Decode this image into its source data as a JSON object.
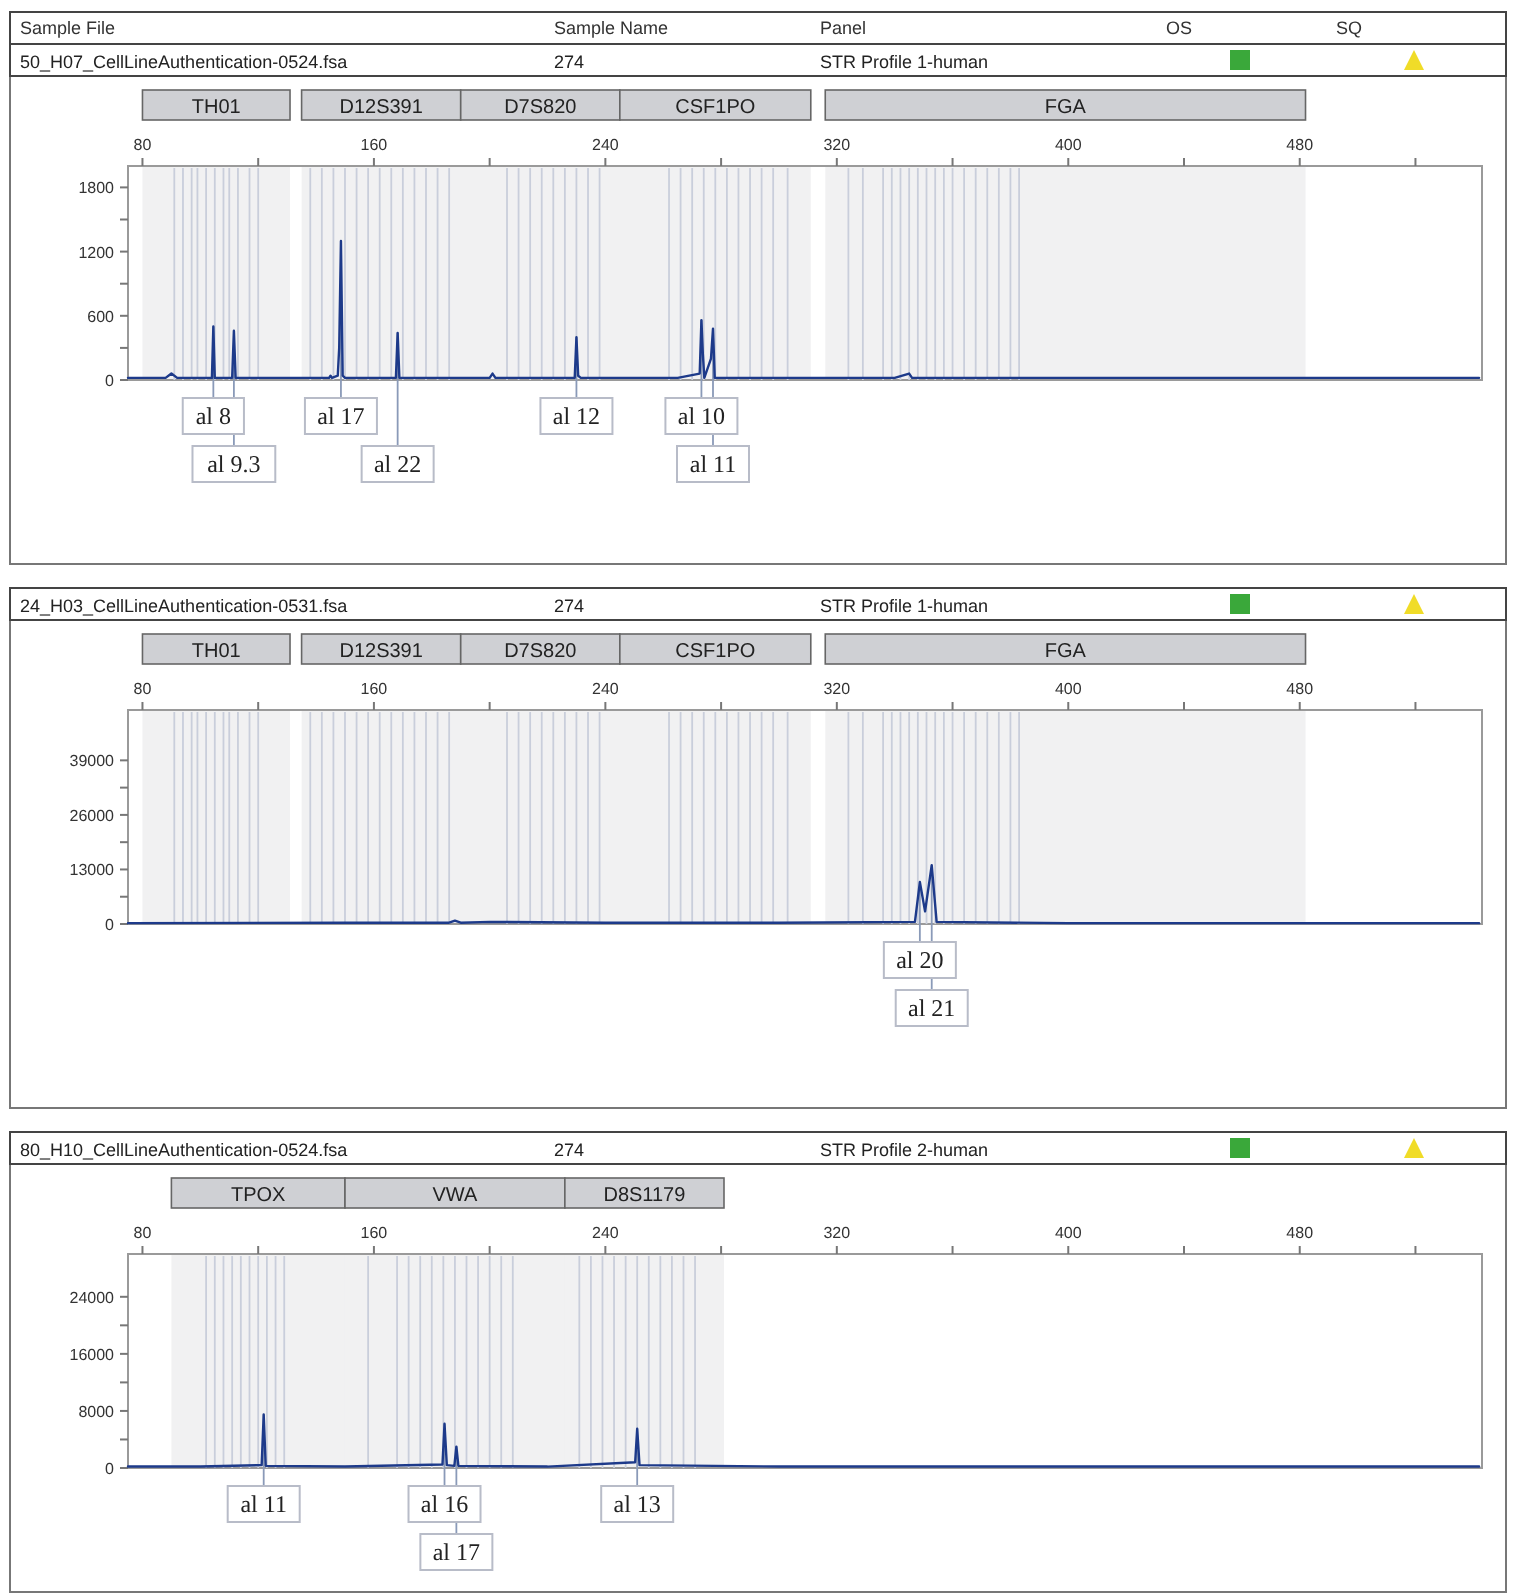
{
  "chart_data": [
    {
      "type": "other",
      "annotations": [
        "Sample File",
        "Sample Name",
        "Panel",
        "OS",
        "SQ"
      ]
    },
    {
      "type": "line",
      "title": "50_H07_CellLineAuthentication-0524.fsa",
      "annotations": [
        "274",
        "STR Profile 1-human",
        {
          "text": "al 8",
          "x": 104.5,
          "y": 500
        },
        {
          "text": "al 9.3",
          "x": 111.6,
          "y": 460
        },
        {
          "text": "al 17",
          "x": 148.6,
          "y": 1300
        },
        {
          "text": "al 22",
          "x": 168.2,
          "y": 440
        },
        {
          "text": "al 12",
          "x": 230,
          "y": 400
        },
        {
          "text": "al 10",
          "x": 273.2,
          "y": 560
        },
        {
          "text": "al 11",
          "x": 277.2,
          "y": 480
        }
      ],
      "x": [
        75,
        88,
        90,
        92,
        104,
        104.5,
        105,
        111,
        111.6,
        112.2,
        120,
        140,
        144.5,
        145,
        145.5,
        147.5,
        148,
        148.6,
        149.2,
        150,
        160,
        167.6,
        168.2,
        168.8,
        185,
        200,
        201,
        202,
        215,
        229.4,
        230,
        230.6,
        231.5,
        250,
        265,
        272.6,
        273.2,
        273.7,
        274.2,
        276.5,
        277.2,
        277.8,
        290,
        320,
        340,
        345,
        346,
        380,
        420,
        470,
        542
      ],
      "values": [
        20,
        20,
        60,
        20,
        20,
        500,
        20,
        20,
        460,
        20,
        20,
        20,
        20,
        40,
        20,
        40,
        300,
        1300,
        40,
        20,
        20,
        20,
        440,
        20,
        20,
        20,
        60,
        20,
        20,
        20,
        400,
        40,
        20,
        20,
        20,
        60,
        560,
        240,
        20,
        200,
        480,
        20,
        20,
        20,
        20,
        60,
        20,
        20,
        20,
        20,
        20
      ],
      "color": "#1d3a8a",
      "xlim": [
        75,
        543
      ],
      "xticks": [
        80,
        {
          "value": 120,
          "label": null
        },
        160,
        {
          "value": 200,
          "label": null
        },
        240,
        {
          "value": 280,
          "label": null
        },
        320,
        {
          "value": 360,
          "label": null
        },
        400,
        {
          "value": 440,
          "label": null
        },
        480,
        {
          "value": 520,
          "label": null
        }
      ],
      "ylim": [
        0,
        2000
      ],
      "yticks": [
        0,
        {
          "value": 300,
          "label": null
        },
        600,
        {
          "value": 900,
          "label": null
        },
        1200,
        {
          "value": 1500,
          "label": null
        },
        1800
      ],
      "bands": [
        {
          "axis": "x",
          "from": 80,
          "to": 131,
          "label": "TH01",
          "color": "#cfd0d4"
        },
        {
          "axis": "x",
          "from": 135,
          "to": 190,
          "label": "D12S391",
          "color": "#cfd0d4"
        },
        {
          "axis": "x",
          "from": 190,
          "to": 245,
          "label": "D7S820",
          "color": "#cfd0d4"
        },
        {
          "axis": "x",
          "from": 245,
          "to": 311,
          "label": "CSF1PO",
          "color": "#cfd0d4"
        },
        {
          "axis": "x",
          "from": 316,
          "to": 482,
          "label": "FGA",
          "color": "#cfd0d4"
        }
      ],
      "ref_lines": [
        {
          "axis": "x",
          "value": 91,
          "color": "#c9cedb"
        },
        {
          "axis": "x",
          "value": 94,
          "color": "#c9cedb"
        },
        {
          "axis": "x",
          "value": 97,
          "color": "#c9cedb"
        },
        {
          "axis": "x",
          "value": 99,
          "color": "#c9cedb"
        },
        {
          "axis": "x",
          "value": 102,
          "color": "#c9cedb"
        },
        {
          "axis": "x",
          "value": 105,
          "color": "#c9cedb"
        },
        {
          "axis": "x",
          "value": 108,
          "color": "#c9cedb"
        },
        {
          "axis": "x",
          "value": 110,
          "color": "#c9cedb"
        },
        {
          "axis": "x",
          "value": 113,
          "color": "#c9cedb"
        },
        {
          "axis": "x",
          "value": 117,
          "color": "#c9cedb"
        },
        {
          "axis": "x",
          "value": 120,
          "color": "#c9cedb"
        },
        {
          "axis": "x",
          "value": 138,
          "color": "#c9cedb"
        },
        {
          "axis": "x",
          "value": 142,
          "color": "#c9cedb"
        },
        {
          "axis": "x",
          "value": 146,
          "color": "#c9cedb"
        },
        {
          "axis": "x",
          "value": 150,
          "color": "#c9cedb"
        },
        {
          "axis": "x",
          "value": 154,
          "color": "#c9cedb"
        },
        {
          "axis": "x",
          "value": 158,
          "color": "#c9cedb"
        },
        {
          "axis": "x",
          "value": 162,
          "color": "#c9cedb"
        },
        {
          "axis": "x",
          "value": 166,
          "color": "#c9cedb"
        },
        {
          "axis": "x",
          "value": 170,
          "color": "#c9cedb"
        },
        {
          "axis": "x",
          "value": 174,
          "color": "#c9cedb"
        },
        {
          "axis": "x",
          "value": 178,
          "color": "#c9cedb"
        },
        {
          "axis": "x",
          "value": 182,
          "color": "#c9cedb"
        },
        {
          "axis": "x",
          "value": 186,
          "color": "#c9cedb"
        },
        {
          "axis": "x",
          "value": 206,
          "color": "#c9cedb"
        },
        {
          "axis": "x",
          "value": 210,
          "color": "#c9cedb"
        },
        {
          "axis": "x",
          "value": 214,
          "color": "#c9cedb"
        },
        {
          "axis": "x",
          "value": 218,
          "color": "#c9cedb"
        },
        {
          "axis": "x",
          "value": 222,
          "color": "#c9cedb"
        },
        {
          "axis": "x",
          "value": 226,
          "color": "#c9cedb"
        },
        {
          "axis": "x",
          "value": 230,
          "color": "#c9cedb"
        },
        {
          "axis": "x",
          "value": 234,
          "color": "#c9cedb"
        },
        {
          "axis": "x",
          "value": 238,
          "color": "#c9cedb"
        },
        {
          "axis": "x",
          "value": 262,
          "color": "#c9cedb"
        },
        {
          "axis": "x",
          "value": 266,
          "color": "#c9cedb"
        },
        {
          "axis": "x",
          "value": 270,
          "color": "#c9cedb"
        },
        {
          "axis": "x",
          "value": 274,
          "color": "#c9cedb"
        },
        {
          "axis": "x",
          "value": 278,
          "color": "#c9cedb"
        },
        {
          "axis": "x",
          "value": 282,
          "color": "#c9cedb"
        },
        {
          "axis": "x",
          "value": 286,
          "color": "#c9cedb"
        },
        {
          "axis": "x",
          "value": 290,
          "color": "#c9cedb"
        },
        {
          "axis": "x",
          "value": 294,
          "color": "#c9cedb"
        },
        {
          "axis": "x",
          "value": 298,
          "color": "#c9cedb"
        },
        {
          "axis": "x",
          "value": 303,
          "color": "#c9cedb"
        },
        {
          "axis": "x",
          "value": 324,
          "color": "#c9cedb"
        },
        {
          "axis": "x",
          "value": 329,
          "color": "#c9cedb"
        },
        {
          "axis": "x",
          "value": 336,
          "color": "#c9cedb"
        },
        {
          "axis": "x",
          "value": 339,
          "color": "#c9cedb"
        },
        {
          "axis": "x",
          "value": 342,
          "color": "#c9cedb"
        },
        {
          "axis": "x",
          "value": 345,
          "color": "#c9cedb"
        },
        {
          "axis": "x",
          "value": 348,
          "color": "#c9cedb"
        },
        {
          "axis": "x",
          "value": 351,
          "color": "#c9cedb"
        },
        {
          "axis": "x",
          "value": 354,
          "color": "#c9cedb"
        },
        {
          "axis": "x",
          "value": 357,
          "color": "#c9cedb"
        },
        {
          "axis": "x",
          "value": 360,
          "color": "#c9cedb"
        },
        {
          "axis": "x",
          "value": 364,
          "color": "#c9cedb"
        },
        {
          "axis": "x",
          "value": 368,
          "color": "#c9cedb"
        },
        {
          "axis": "x",
          "value": 372,
          "color": "#c9cedb"
        },
        {
          "axis": "x",
          "value": 376,
          "color": "#c9cedb"
        },
        {
          "axis": "x",
          "value": 380,
          "color": "#c9cedb"
        },
        {
          "axis": "x",
          "value": 383,
          "color": "#c9cedb"
        }
      ]
    },
    {
      "type": "line",
      "title": "24_H03_CellLineAuthentication-0531.fsa",
      "annotations": [
        "274",
        "STR Profile 1-human",
        {
          "text": "al 20",
          "x": 348.7,
          "y": 10000
        },
        {
          "text": "al 21",
          "x": 352.8,
          "y": 14000
        }
      ],
      "x": [
        75,
        150,
        186,
        188,
        190,
        200,
        240,
        300,
        347,
        348.7,
        350.5,
        352.8,
        354.5,
        400,
        542
      ],
      "values": [
        200,
        300,
        300,
        800,
        300,
        500,
        300,
        300,
        500,
        10000,
        3000,
        14000,
        500,
        200,
        200
      ],
      "color": "#1d3a8a",
      "xlim": [
        75,
        543
      ],
      "xticks": [
        80,
        {
          "value": 120,
          "label": null
        },
        160,
        {
          "value": 200,
          "label": null
        },
        240,
        {
          "value": 280,
          "label": null
        },
        320,
        {
          "value": 360,
          "label": null
        },
        400,
        {
          "value": 440,
          "label": null
        },
        480,
        {
          "value": 520,
          "label": null
        }
      ],
      "ylim": [
        0,
        51000
      ],
      "yticks": [
        0,
        {
          "value": 6500,
          "label": null
        },
        13000,
        {
          "value": 19500,
          "label": null
        },
        26000,
        {
          "value": 32500,
          "label": null
        },
        39000
      ],
      "bands": [
        {
          "axis": "x",
          "from": 80,
          "to": 131,
          "label": "TH01",
          "color": "#cfd0d4"
        },
        {
          "axis": "x",
          "from": 135,
          "to": 190,
          "label": "D12S391",
          "color": "#cfd0d4"
        },
        {
          "axis": "x",
          "from": 190,
          "to": 245,
          "label": "D7S820",
          "color": "#cfd0d4"
        },
        {
          "axis": "x",
          "from": 245,
          "to": 311,
          "label": "CSF1PO",
          "color": "#cfd0d4"
        },
        {
          "axis": "x",
          "from": 316,
          "to": 482,
          "label": "FGA",
          "color": "#cfd0d4"
        }
      ],
      "ref_lines": [
        {
          "axis": "x",
          "value": 91,
          "color": "#c9cedb"
        },
        {
          "axis": "x",
          "value": 94,
          "color": "#c9cedb"
        },
        {
          "axis": "x",
          "value": 97,
          "color": "#c9cedb"
        },
        {
          "axis": "x",
          "value": 99,
          "color": "#c9cedb"
        },
        {
          "axis": "x",
          "value": 102,
          "color": "#c9cedb"
        },
        {
          "axis": "x",
          "value": 105,
          "color": "#c9cedb"
        },
        {
          "axis": "x",
          "value": 108,
          "color": "#c9cedb"
        },
        {
          "axis": "x",
          "value": 110,
          "color": "#c9cedb"
        },
        {
          "axis": "x",
          "value": 113,
          "color": "#c9cedb"
        },
        {
          "axis": "x",
          "value": 117,
          "color": "#c9cedb"
        },
        {
          "axis": "x",
          "value": 120,
          "color": "#c9cedb"
        },
        {
          "axis": "x",
          "value": 138,
          "color": "#c9cedb"
        },
        {
          "axis": "x",
          "value": 142,
          "color": "#c9cedb"
        },
        {
          "axis": "x",
          "value": 146,
          "color": "#c9cedb"
        },
        {
          "axis": "x",
          "value": 150,
          "color": "#c9cedb"
        },
        {
          "axis": "x",
          "value": 154,
          "color": "#c9cedb"
        },
        {
          "axis": "x",
          "value": 158,
          "color": "#c9cedb"
        },
        {
          "axis": "x",
          "value": 162,
          "color": "#c9cedb"
        },
        {
          "axis": "x",
          "value": 166,
          "color": "#c9cedb"
        },
        {
          "axis": "x",
          "value": 170,
          "color": "#c9cedb"
        },
        {
          "axis": "x",
          "value": 174,
          "color": "#c9cedb"
        },
        {
          "axis": "x",
          "value": 178,
          "color": "#c9cedb"
        },
        {
          "axis": "x",
          "value": 182,
          "color": "#c9cedb"
        },
        {
          "axis": "x",
          "value": 186,
          "color": "#c9cedb"
        },
        {
          "axis": "x",
          "value": 206,
          "color": "#c9cedb"
        },
        {
          "axis": "x",
          "value": 210,
          "color": "#c9cedb"
        },
        {
          "axis": "x",
          "value": 214,
          "color": "#c9cedb"
        },
        {
          "axis": "x",
          "value": 218,
          "color": "#c9cedb"
        },
        {
          "axis": "x",
          "value": 222,
          "color": "#c9cedb"
        },
        {
          "axis": "x",
          "value": 226,
          "color": "#c9cedb"
        },
        {
          "axis": "x",
          "value": 230,
          "color": "#c9cedb"
        },
        {
          "axis": "x",
          "value": 234,
          "color": "#c9cedb"
        },
        {
          "axis": "x",
          "value": 238,
          "color": "#c9cedb"
        },
        {
          "axis": "x",
          "value": 262,
          "color": "#c9cedb"
        },
        {
          "axis": "x",
          "value": 266,
          "color": "#c9cedb"
        },
        {
          "axis": "x",
          "value": 270,
          "color": "#c9cedb"
        },
        {
          "axis": "x",
          "value": 274,
          "color": "#c9cedb"
        },
        {
          "axis": "x",
          "value": 278,
          "color": "#c9cedb"
        },
        {
          "axis": "x",
          "value": 282,
          "color": "#c9cedb"
        },
        {
          "axis": "x",
          "value": 286,
          "color": "#c9cedb"
        },
        {
          "axis": "x",
          "value": 290,
          "color": "#c9cedb"
        },
        {
          "axis": "x",
          "value": 294,
          "color": "#c9cedb"
        },
        {
          "axis": "x",
          "value": 298,
          "color": "#c9cedb"
        },
        {
          "axis": "x",
          "value": 303,
          "color": "#c9cedb"
        },
        {
          "axis": "x",
          "value": 324,
          "color": "#c9cedb"
        },
        {
          "axis": "x",
          "value": 329,
          "color": "#c9cedb"
        },
        {
          "axis": "x",
          "value": 336,
          "color": "#c9cedb"
        },
        {
          "axis": "x",
          "value": 339,
          "color": "#c9cedb"
        },
        {
          "axis": "x",
          "value": 342,
          "color": "#c9cedb"
        },
        {
          "axis": "x",
          "value": 345,
          "color": "#c9cedb"
        },
        {
          "axis": "x",
          "value": 348,
          "color": "#c9cedb"
        },
        {
          "axis": "x",
          "value": 351,
          "color": "#c9cedb"
        },
        {
          "axis": "x",
          "value": 354,
          "color": "#c9cedb"
        },
        {
          "axis": "x",
          "value": 357,
          "color": "#c9cedb"
        },
        {
          "axis": "x",
          "value": 360,
          "color": "#c9cedb"
        },
        {
          "axis": "x",
          "value": 364,
          "color": "#c9cedb"
        },
        {
          "axis": "x",
          "value": 368,
          "color": "#c9cedb"
        },
        {
          "axis": "x",
          "value": 372,
          "color": "#c9cedb"
        },
        {
          "axis": "x",
          "value": 376,
          "color": "#c9cedb"
        },
        {
          "axis": "x",
          "value": 380,
          "color": "#c9cedb"
        },
        {
          "axis": "x",
          "value": 383,
          "color": "#c9cedb"
        }
      ]
    },
    {
      "type": "line",
      "title": "80_H10_CellLineAuthentication-0524.fsa",
      "annotations": [
        "274",
        "STR Profile 2-human",
        {
          "text": "al 11",
          "x": 121.9,
          "y": 7500
        },
        {
          "text": "al 16",
          "x": 184.4,
          "y": 6200
        },
        {
          "text": "al 17",
          "x": 188.5,
          "y": 3000
        },
        {
          "text": "al 13",
          "x": 251,
          "y": 5500
        }
      ],
      "x": [
        75,
        100,
        121.2,
        121.9,
        122.6,
        150,
        183.7,
        184.4,
        185.2,
        187.8,
        188.5,
        189.2,
        220,
        250.3,
        251,
        251.8,
        300,
        542
      ],
      "values": [
        200,
        200,
        400,
        7500,
        300,
        200,
        500,
        6200,
        400,
        300,
        3000,
        300,
        200,
        800,
        5500,
        400,
        200,
        200
      ],
      "color": "#1d3a8a",
      "xlim": [
        75,
        543
      ],
      "xticks": [
        80,
        {
          "value": 120,
          "label": null
        },
        160,
        {
          "value": 200,
          "label": null
        },
        240,
        {
          "value": 280,
          "label": null
        },
        320,
        {
          "value": 360,
          "label": null
        },
        400,
        {
          "value": 440,
          "label": null
        },
        480,
        {
          "value": 520,
          "label": null
        }
      ],
      "ylim": [
        0,
        30000
      ],
      "yticks": [
        0,
        {
          "value": 4000,
          "label": null
        },
        8000,
        {
          "value": 12000,
          "label": null
        },
        16000,
        {
          "value": 20000,
          "label": null
        },
        24000
      ],
      "bands": [
        {
          "axis": "x",
          "from": 90,
          "to": 150,
          "label": "TPOX",
          "color": "#cfd0d4"
        },
        {
          "axis": "x",
          "from": 150,
          "to": 226,
          "label": "VWA",
          "color": "#cfd0d4"
        },
        {
          "axis": "x",
          "from": 226,
          "to": 281,
          "label": "D8S1179",
          "color": "#cfd0d4"
        }
      ],
      "ref_lines": [
        {
          "axis": "x",
          "value": 102,
          "color": "#c9cedb"
        },
        {
          "axis": "x",
          "value": 105,
          "color": "#c9cedb"
        },
        {
          "axis": "x",
          "value": 108,
          "color": "#c9cedb"
        },
        {
          "axis": "x",
          "value": 111,
          "color": "#c9cedb"
        },
        {
          "axis": "x",
          "value": 114,
          "color": "#c9cedb"
        },
        {
          "axis": "x",
          "value": 117,
          "color": "#c9cedb"
        },
        {
          "axis": "x",
          "value": 120,
          "color": "#c9cedb"
        },
        {
          "axis": "x",
          "value": 123,
          "color": "#c9cedb"
        },
        {
          "axis": "x",
          "value": 126,
          "color": "#c9cedb"
        },
        {
          "axis": "x",
          "value": 129,
          "color": "#c9cedb"
        },
        {
          "axis": "x",
          "value": 158,
          "color": "#c9cedb"
        },
        {
          "axis": "x",
          "value": 168,
          "color": "#c9cedb"
        },
        {
          "axis": "x",
          "value": 172,
          "color": "#c9cedb"
        },
        {
          "axis": "x",
          "value": 176,
          "color": "#c9cedb"
        },
        {
          "axis": "x",
          "value": 180,
          "color": "#c9cedb"
        },
        {
          "axis": "x",
          "value": 184,
          "color": "#c9cedb"
        },
        {
          "axis": "x",
          "value": 188,
          "color": "#c9cedb"
        },
        {
          "axis": "x",
          "value": 192,
          "color": "#c9cedb"
        },
        {
          "axis": "x",
          "value": 196,
          "color": "#c9cedb"
        },
        {
          "axis": "x",
          "value": 200,
          "color": "#c9cedb"
        },
        {
          "axis": "x",
          "value": 204,
          "color": "#c9cedb"
        },
        {
          "axis": "x",
          "value": 208,
          "color": "#c9cedb"
        },
        {
          "axis": "x",
          "value": 231,
          "color": "#c9cedb"
        },
        {
          "axis": "x",
          "value": 235,
          "color": "#c9cedb"
        },
        {
          "axis": "x",
          "value": 239,
          "color": "#c9cedb"
        },
        {
          "axis": "x",
          "value": 243,
          "color": "#c9cedb"
        },
        {
          "axis": "x",
          "value": 247,
          "color": "#c9cedb"
        },
        {
          "axis": "x",
          "value": 251,
          "color": "#c9cedb"
        },
        {
          "axis": "x",
          "value": 255,
          "color": "#c9cedb"
        },
        {
          "axis": "x",
          "value": 259,
          "color": "#c9cedb"
        },
        {
          "axis": "x",
          "value": 263,
          "color": "#c9cedb"
        },
        {
          "axis": "x",
          "value": 267,
          "color": "#c9cedb"
        },
        {
          "axis": "x",
          "value": 271,
          "color": "#c9cedb"
        }
      ]
    }
  ]
}
